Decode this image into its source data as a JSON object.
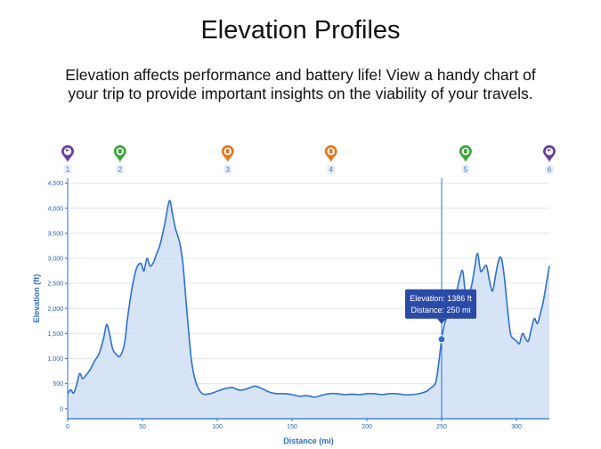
{
  "page": {
    "title": "Elevation Profiles",
    "description": "Elevation affects performance and battery life! View a handy chart of your trip to provide important insights on the viability of your travels."
  },
  "colors": {
    "line": "#2f6fd0",
    "fill": "#cfdff5",
    "grid": "#dfe7f2",
    "tooltip": "#2a4aa8",
    "marker_purple": "#6a3fa0",
    "marker_green": "#3aa63a",
    "marker_orange": "#e07a1e"
  },
  "chart_data": {
    "type": "area",
    "title": "",
    "xlabel": "Distance (mi)",
    "ylabel": "Elevation (ft)",
    "xlim": [
      0,
      322
    ],
    "ylim": [
      -200,
      4600
    ],
    "xticks": [
      0,
      50,
      100,
      150,
      200,
      250,
      300
    ],
    "xtick_labels": [
      "0",
      "50",
      "100",
      "150",
      "200",
      "250",
      "300"
    ],
    "yticks": [
      0,
      500,
      1000,
      1500,
      2000,
      2500,
      3000,
      3500,
      4000,
      4500
    ],
    "ytick_labels": [
      "0",
      "500",
      "1,000",
      "1,500",
      "2,000",
      "2,500",
      "3,000",
      "3,500",
      "4,000",
      "4,500"
    ],
    "grid": true,
    "series": [
      {
        "name": "Elevation",
        "x": [
          0,
          2,
          4,
          6,
          8,
          10,
          12,
          15,
          18,
          21,
          24,
          26,
          28,
          30,
          32,
          35,
          38,
          40,
          43,
          46,
          49,
          51,
          53,
          55,
          57,
          59,
          62,
          65,
          68,
          70,
          72,
          75,
          77,
          79,
          81,
          83,
          86,
          90,
          95,
          100,
          105,
          110,
          115,
          120,
          125,
          130,
          135,
          140,
          145,
          150,
          155,
          160,
          165,
          170,
          175,
          180,
          185,
          190,
          195,
          200,
          205,
          210,
          215,
          220,
          225,
          230,
          235,
          240,
          243,
          246,
          248,
          250,
          252,
          254,
          256,
          258,
          260,
          262,
          264,
          266,
          268,
          270,
          272,
          274,
          276,
          278,
          280,
          282,
          284,
          286,
          288,
          290,
          292,
          294,
          296,
          298,
          300,
          302,
          304,
          306,
          308,
          310,
          312,
          314,
          316,
          318,
          320,
          322
        ],
        "y": [
          300,
          380,
          310,
          480,
          700,
          600,
          660,
          780,
          950,
          1100,
          1400,
          1680,
          1500,
          1200,
          1100,
          1050,
          1300,
          1800,
          2400,
          2800,
          2900,
          2750,
          3000,
          2850,
          2900,
          3050,
          3300,
          3700,
          4150,
          3900,
          3600,
          3300,
          2900,
          2200,
          1500,
          900,
          500,
          300,
          300,
          350,
          400,
          420,
          370,
          400,
          450,
          400,
          330,
          300,
          300,
          280,
          250,
          260,
          230,
          270,
          300,
          300,
          280,
          290,
          280,
          300,
          300,
          280,
          300,
          300,
          280,
          280,
          300,
          350,
          420,
          520,
          900,
          1386,
          1700,
          1850,
          2000,
          2300,
          2350,
          2600,
          2750,
          2300,
          2300,
          2450,
          2800,
          3100,
          2750,
          2800,
          2850,
          2550,
          2350,
          2650,
          2950,
          3000,
          2600,
          2000,
          1500,
          1400,
          1350,
          1300,
          1500,
          1400,
          1350,
          1600,
          1800,
          1700,
          1900,
          2150,
          2500,
          2850
        ]
      }
    ],
    "cursor": {
      "x": 250,
      "y": 1386
    },
    "tooltip": {
      "elevation_text": "Elevation: 1386 ft",
      "distance_text": "Distance: 250 mi"
    },
    "markers": [
      {
        "id": "1",
        "x": 0,
        "kind": "destination",
        "color": "purple"
      },
      {
        "id": "2",
        "x": 35,
        "kind": "charger",
        "color": "green"
      },
      {
        "id": "3",
        "x": 107,
        "kind": "charger",
        "color": "orange"
      },
      {
        "id": "4",
        "x": 176,
        "kind": "charger",
        "color": "orange"
      },
      {
        "id": "5",
        "x": 266,
        "kind": "charger",
        "color": "green"
      },
      {
        "id": "6",
        "x": 322,
        "kind": "destination",
        "color": "purple"
      }
    ]
  }
}
